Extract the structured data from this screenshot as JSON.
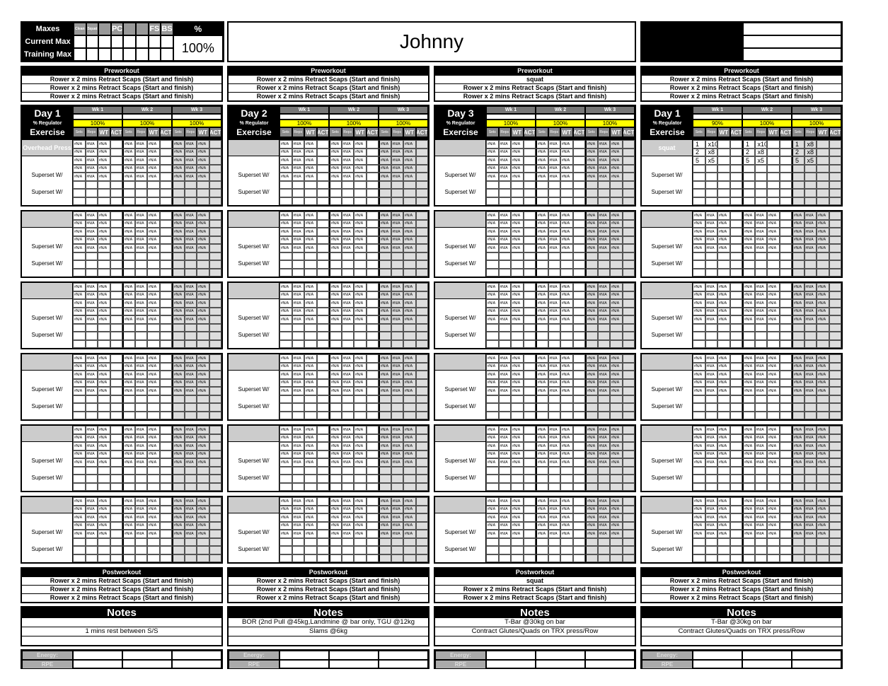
{
  "maxes": {
    "title": "Maxes",
    "rows": [
      "Current Max",
      "Training Max"
    ],
    "lifts": [
      "Clean",
      "Squat",
      "",
      "PC",
      "",
      "",
      "FS",
      "BS"
    ],
    "percent_label": "%",
    "percent_value": "100%"
  },
  "athlete_name": "Johnny",
  "labels": {
    "preworkout": "Preworkout",
    "postworkout": "Postworkout",
    "notes": "Notes",
    "regulator": "% Regulator",
    "exercise": "Exercise",
    "weeks": [
      "Wk 1",
      "Wk 2",
      "Wk 3"
    ],
    "subheaders": [
      "Sets",
      "Reps",
      "WT",
      "ACT"
    ],
    "superset": "Superset W/",
    "energy": "Energy:",
    "rpe": "RPE",
    "fill_value": "#N/A"
  },
  "colors": {
    "regulator": "#ffff00",
    "header": "#000000",
    "week_header": "#777777",
    "week3_shade": "#dddddd"
  },
  "days": [
    {
      "title": "Day 1",
      "preworkout": [
        "Rower x 2 mins Retract Scaps (Start and finish)",
        "Rower x 2 mins Retract Scaps (Start and finish)",
        "Rower x 2 mins Retract Scaps (Start and finish)"
      ],
      "regulators": [
        "100%",
        "100%",
        "100%"
      ],
      "blocks": [
        {
          "exercise": "Overhead Press",
          "filled_rows": 5
        },
        {
          "exercise": "",
          "filled_rows": 5
        },
        {
          "exercise": "",
          "filled_rows": 5
        },
        {
          "exercise": "",
          "filled_rows": 5
        },
        {
          "exercise": "",
          "filled_rows": 5
        },
        {
          "exercise": "",
          "filled_rows": 5
        }
      ],
      "postworkout": [
        "Rower x 2 mins Retract Scaps (Start and finish)",
        "Rower x 2 mins Retract Scaps (Start and finish)",
        "Rower x 2 mins Retract Scaps (Start and finish)"
      ],
      "notes": [
        "",
        "1 mins rest between S/S",
        ""
      ]
    },
    {
      "title": "Day 2",
      "preworkout": [
        "Rower x 2 mins Retract Scaps (Start and finish)",
        "Rower x 2 mins Retract Scaps (Start and finish)",
        "Rower x 2 mins Retract Scaps (Start and finish)"
      ],
      "regulators": [
        "100%",
        "100%",
        "100%"
      ],
      "blocks": [
        {
          "exercise": "",
          "filled_rows": 5
        },
        {
          "exercise": "",
          "filled_rows": 5
        },
        {
          "exercise": "",
          "filled_rows": 5
        },
        {
          "exercise": "",
          "filled_rows": 5
        },
        {
          "exercise": "",
          "filled_rows": 5
        },
        {
          "exercise": "",
          "filled_rows": 5
        }
      ],
      "postworkout": [
        "Rower x 2 mins Retract Scaps (Start and finish)",
        "Rower x 2 mins Retract Scaps (Start and finish)",
        "Rower x 2 mins Retract Scaps (Start and finish)"
      ],
      "notes": [
        "BOR (2nd Pull @45kg,Landmine @ bar only, TGU @12kg",
        "Slams @6kg",
        ""
      ]
    },
    {
      "title": "Day 3",
      "preworkout": [
        "squat",
        "Rower x 2 mins Retract Scaps (Start and finish)",
        "Rower x 2 mins Retract Scaps (Start and finish)"
      ],
      "regulators": [
        "100%",
        "100%",
        "100%"
      ],
      "blocks": [
        {
          "exercise": "",
          "filled_rows": 5
        },
        {
          "exercise": "",
          "filled_rows": 5
        },
        {
          "exercise": "",
          "filled_rows": 5
        },
        {
          "exercise": "",
          "filled_rows": 5
        },
        {
          "exercise": "",
          "filled_rows": 5
        },
        {
          "exercise": "",
          "filled_rows": 5
        }
      ],
      "postworkout": [
        "squat",
        "Rower x 2 mins Retract Scaps (Start and finish)",
        "Rower x 2 mins Retract Scaps (Start and finish)"
      ],
      "notes": [
        "T-Bar @30kg on bar",
        "Contract Glutes/Quads on TRX press/Row",
        ""
      ]
    },
    {
      "title": "Day 1",
      "preworkout": [
        "Rower x 2 mins Retract Scaps (Start and finish)",
        "Rower x 2 mins Retract Scaps (Start and finish)",
        "Rower x 2 mins Retract Scaps (Start and finish)"
      ],
      "regulators": [
        "90%",
        "100%",
        "100%"
      ],
      "blocks": [
        {
          "exercise": "squat",
          "cells": [
            [
              [
                "1",
                "x10"
              ],
              [
                "2",
                "x8"
              ],
              [
                "5",
                "x5"
              ]
            ],
            [
              [
                "1",
                "x10"
              ],
              [
                "2",
                "x8"
              ],
              [
                "5",
                "x5"
              ]
            ],
            [
              [
                "1",
                "x8"
              ],
              [
                "2",
                "x8"
              ],
              [
                "5",
                "x5"
              ]
            ]
          ]
        },
        {
          "exercise": "",
          "filled_rows": 5
        },
        {
          "exercise": "",
          "filled_rows": 5
        },
        {
          "exercise": "",
          "filled_rows": 5
        },
        {
          "exercise": "",
          "filled_rows": 5
        },
        {
          "exercise": "",
          "filled_rows": 5
        }
      ],
      "postworkout": [
        "Rower x 2 mins Retract Scaps (Start and finish)",
        "Rower x 2 mins Retract Scaps (Start and finish)",
        "Rower x 2 mins Retract Scaps (Start and finish)"
      ],
      "notes": [
        "T-Bar @30kg on bar",
        "Contract Glutes/Quads on TRX press/Row",
        ""
      ]
    }
  ]
}
